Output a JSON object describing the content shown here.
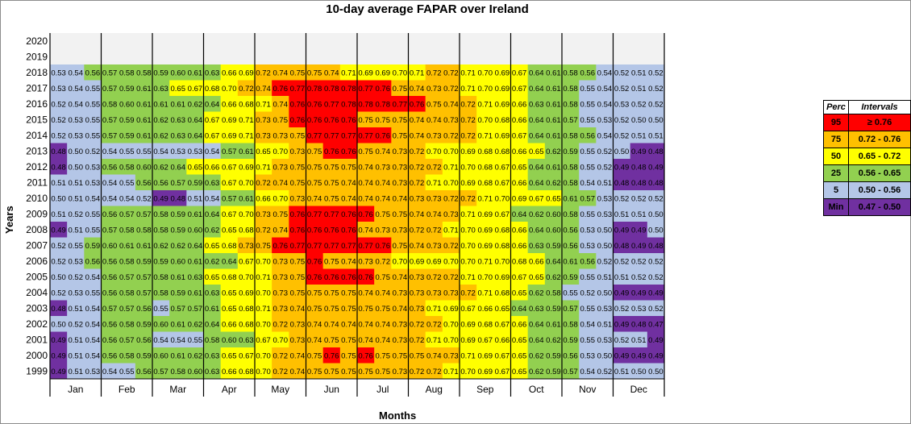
{
  "chart_data": {
    "type": "heatmap",
    "title": "10-day average FAPAR over Ireland",
    "xlabel": "Months",
    "ylabel": "Years",
    "months": [
      "Jan",
      "Feb",
      "Mar",
      "Apr",
      "May",
      "Jun",
      "Jul",
      "Aug",
      "Sep",
      "Oct",
      "Nov",
      "Dec"
    ],
    "years": [
      "2020",
      "2019",
      "2018",
      "2017",
      "2016",
      "2015",
      "2014",
      "2013",
      "2012",
      "2011",
      "2010",
      "2009",
      "2008",
      "2007",
      "2006",
      "2005",
      "2004",
      "2003",
      "2002",
      "2001",
      "2000",
      "1999"
    ],
    "rows": [
      [],
      [],
      [
        "0.53",
        "0.54",
        "0.56",
        "0.57",
        "0.58",
        "0.58",
        "0.59",
        "0.60",
        "0.61",
        "0.63",
        "0.66",
        "0.69",
        "0.72",
        "0.74",
        "0.75",
        "0.75",
        "0.74",
        "0.71",
        "0.69",
        "0.69",
        "0.70",
        "0.71",
        "0.72",
        "0.72",
        "0.71",
        "0.70",
        "0.69",
        "0.67",
        "0.64",
        "0.61",
        "0.58",
        "0.56",
        "0.54",
        "0.52",
        "0.51",
        "0.52"
      ],
      [
        "0.53",
        "0.54",
        "0.55",
        "0.57",
        "0.59",
        "0.61",
        "0.63",
        "0.65",
        "0.67",
        "0.68",
        "0.70",
        "0.72",
        "0.74",
        "0.76",
        "0.77",
        "0.78",
        "0.78",
        "0.78",
        "0.77",
        "0.76",
        "0.75",
        "0.74",
        "0.73",
        "0.72",
        "0.71",
        "0.70",
        "0.69",
        "0.67",
        "0.64",
        "0.61",
        "0.58",
        "0.55",
        "0.54",
        "0.52",
        "0.51",
        "0.52"
      ],
      [
        "0.52",
        "0.54",
        "0.55",
        "0.58",
        "0.60",
        "0.61",
        "0.61",
        "0.61",
        "0.62",
        "0.64",
        "0.66",
        "0.68",
        "0.71",
        "0.74",
        "0.76",
        "0.76",
        "0.77",
        "0.78",
        "0.78",
        "0.78",
        "0.77",
        "0.76",
        "0.75",
        "0.74",
        "0.72",
        "0.71",
        "0.69",
        "0.66",
        "0.63",
        "0.61",
        "0.58",
        "0.55",
        "0.54",
        "0.53",
        "0.52",
        "0.52"
      ],
      [
        "0.52",
        "0.53",
        "0.55",
        "0.57",
        "0.59",
        "0.61",
        "0.62",
        "0.63",
        "0.64",
        "0.67",
        "0.69",
        "0.71",
        "0.73",
        "0.75",
        "0.76",
        "0.76",
        "0.76",
        "0.76",
        "0.75",
        "0.75",
        "0.75",
        "0.74",
        "0.74",
        "0.73",
        "0.72",
        "0.70",
        "0.68",
        "0.66",
        "0.64",
        "0.61",
        "0.57",
        "0.55",
        "0.53",
        "0.52",
        "0.50",
        "0.50"
      ],
      [
        "0.52",
        "0.53",
        "0.55",
        "0.57",
        "0.59",
        "0.61",
        "0.62",
        "0.63",
        "0.64",
        "0.67",
        "0.69",
        "0.71",
        "0.73",
        "0.73",
        "0.75",
        "0.77",
        "0.77",
        "0.77",
        "0.77",
        "0.76",
        "0.75",
        "0.74",
        "0.73",
        "0.72",
        "0.72",
        "0.71",
        "0.69",
        "0.67",
        "0.64",
        "0.61",
        "0.58",
        "0.56",
        "0.54",
        "0.52",
        "0.51",
        "0.51"
      ],
      [
        "0.48",
        "0.50",
        "0.52",
        "0.54",
        "0.55",
        "0.55",
        "0.54",
        "0.53",
        "0.53",
        "0.54",
        "0.57",
        "0.61",
        "0.65",
        "0.70",
        "0.73",
        "0.75",
        "0.76",
        "0.76",
        "0.75",
        "0.74",
        "0.73",
        "0.72",
        "0.70",
        "0.70",
        "0.69",
        "0.68",
        "0.68",
        "0.66",
        "0.65",
        "0.62",
        "0.59",
        "0.55",
        "0.52",
        "0.50",
        "0.49",
        "0.48"
      ],
      [
        "0.48",
        "0.50",
        "0.53",
        "0.56",
        "0.58",
        "0.60",
        "0.62",
        "0.64",
        "0.65",
        "0.66",
        "0.67",
        "0.69",
        "0.71",
        "0.73",
        "0.75",
        "0.75",
        "0.75",
        "0.75",
        "0.74",
        "0.73",
        "0.73",
        "0.72",
        "0.72",
        "0.71",
        "0.70",
        "0.68",
        "0.67",
        "0.65",
        "0.64",
        "0.61",
        "0.58",
        "0.55",
        "0.52",
        "0.49",
        "0.48",
        "0.49"
      ],
      [
        "0.51",
        "0.51",
        "0.53",
        "0.54",
        "0.55",
        "0.56",
        "0.56",
        "0.57",
        "0.59",
        "0.63",
        "0.67",
        "0.70",
        "0.72",
        "0.74",
        "0.75",
        "0.75",
        "0.75",
        "0.74",
        "0.74",
        "0.74",
        "0.73",
        "0.72",
        "0.71",
        "0.70",
        "0.69",
        "0.68",
        "0.67",
        "0.66",
        "0.64",
        "0.62",
        "0.58",
        "0.54",
        "0.51",
        "0.48",
        "0.48",
        "0.48"
      ],
      [
        "0.50",
        "0.51",
        "0.54",
        "0.54",
        "0.54",
        "0.52",
        "0.49",
        "0.48",
        "0.51",
        "0.54",
        "0.57",
        "0.61",
        "0.66",
        "0.70",
        "0.73",
        "0.74",
        "0.75",
        "0.74",
        "0.74",
        "0.74",
        "0.74",
        "0.73",
        "0.73",
        "0.72",
        "0.72",
        "0.71",
        "0.70",
        "0.69",
        "0.67",
        "0.65",
        "0.61",
        "0.57",
        "0.53",
        "0.52",
        "0.52",
        "0.52"
      ],
      [
        "0.51",
        "0.52",
        "0.55",
        "0.56",
        "0.57",
        "0.57",
        "0.58",
        "0.59",
        "0.61",
        "0.64",
        "0.67",
        "0.70",
        "0.73",
        "0.75",
        "0.76",
        "0.77",
        "0.77",
        "0.76",
        "0.76",
        "0.75",
        "0.75",
        "0.74",
        "0.74",
        "0.73",
        "0.71",
        "0.69",
        "0.67",
        "0.64",
        "0.62",
        "0.60",
        "0.58",
        "0.55",
        "0.53",
        "0.51",
        "0.51",
        "0.50"
      ],
      [
        "0.49",
        "0.51",
        "0.55",
        "0.57",
        "0.58",
        "0.58",
        "0.58",
        "0.59",
        "0.60",
        "0.62",
        "0.65",
        "0.68",
        "0.72",
        "0.74",
        "0.76",
        "0.76",
        "0.76",
        "0.76",
        "0.74",
        "0.73",
        "0.73",
        "0.72",
        "0.72",
        "0.71",
        "0.70",
        "0.69",
        "0.68",
        "0.66",
        "0.64",
        "0.60",
        "0.56",
        "0.53",
        "0.50",
        "0.49",
        "0.49",
        "0.50"
      ],
      [
        "0.52",
        "0.55",
        "0.59",
        "0.60",
        "0.61",
        "0.61",
        "0.62",
        "0.62",
        "0.64",
        "0.65",
        "0.68",
        "0.73",
        "0.75",
        "0.76",
        "0.77",
        "0.77",
        "0.77",
        "0.77",
        "0.77",
        "0.76",
        "0.75",
        "0.74",
        "0.73",
        "0.72",
        "0.70",
        "0.69",
        "0.68",
        "0.66",
        "0.63",
        "0.59",
        "0.56",
        "0.53",
        "0.50",
        "0.48",
        "0.49",
        "0.48"
      ],
      [
        "0.52",
        "0.53",
        "0.56",
        "0.56",
        "0.58",
        "0.59",
        "0.59",
        "0.60",
        "0.61",
        "0.62",
        "0.64",
        "0.67",
        "0.70",
        "0.73",
        "0.75",
        "0.76",
        "0.75",
        "0.74",
        "0.73",
        "0.72",
        "0.70",
        "0.69",
        "0.69",
        "0.70",
        "0.70",
        "0.71",
        "0.70",
        "0.68",
        "0.66",
        "0.64",
        "0.61",
        "0.56",
        "0.52",
        "0.52",
        "0.52",
        "0.52"
      ],
      [
        "0.50",
        "0.52",
        "0.54",
        "0.56",
        "0.57",
        "0.57",
        "0.58",
        "0.61",
        "0.63",
        "0.65",
        "0.68",
        "0.70",
        "0.71",
        "0.73",
        "0.75",
        "0.76",
        "0.76",
        "0.76",
        "0.76",
        "0.75",
        "0.74",
        "0.73",
        "0.72",
        "0.72",
        "0.71",
        "0.70",
        "0.69",
        "0.67",
        "0.65",
        "0.62",
        "0.59",
        "0.55",
        "0.51",
        "0.51",
        "0.52",
        "0.52"
      ],
      [
        "0.52",
        "0.53",
        "0.55",
        "0.56",
        "0.58",
        "0.57",
        "0.58",
        "0.59",
        "0.61",
        "0.63",
        "0.65",
        "0.69",
        "0.70",
        "0.73",
        "0.75",
        "0.75",
        "0.75",
        "0.75",
        "0.74",
        "0.74",
        "0.73",
        "0.73",
        "0.73",
        "0.73",
        "0.72",
        "0.71",
        "0.68",
        "0.65",
        "0.62",
        "0.58",
        "0.55",
        "0.52",
        "0.50",
        "0.49",
        "0.49",
        "0.49"
      ],
      [
        "0.48",
        "0.51",
        "0.54",
        "0.57",
        "0.57",
        "0.56",
        "0.55",
        "0.57",
        "0.57",
        "0.61",
        "0.65",
        "0.68",
        "0.71",
        "0.73",
        "0.74",
        "0.75",
        "0.75",
        "0.75",
        "0.75",
        "0.75",
        "0.74",
        "0.73",
        "0.71",
        "0.69",
        "0.67",
        "0.66",
        "0.65",
        "0.64",
        "0.63",
        "0.59",
        "0.57",
        "0.55",
        "0.53",
        "0.52",
        "0.53",
        "0.52"
      ],
      [
        "0.50",
        "0.52",
        "0.54",
        "0.56",
        "0.58",
        "0.59",
        "0.60",
        "0.61",
        "0.62",
        "0.64",
        "0.66",
        "0.68",
        "0.70",
        "0.72",
        "0.73",
        "0.74",
        "0.74",
        "0.74",
        "0.74",
        "0.74",
        "0.73",
        "0.72",
        "0.72",
        "0.70",
        "0.69",
        "0.68",
        "0.67",
        "0.66",
        "0.64",
        "0.61",
        "0.58",
        "0.54",
        "0.51",
        "0.49",
        "0.48",
        "0.47"
      ],
      [
        "0.49",
        "0.51",
        "0.54",
        "0.56",
        "0.57",
        "0.56",
        "0.54",
        "0.54",
        "0.55",
        "0.58",
        "0.60",
        "0.63",
        "0.67",
        "0.70",
        "0.73",
        "0.74",
        "0.75",
        "0.75",
        "0.74",
        "0.74",
        "0.73",
        "0.72",
        "0.71",
        "0.70",
        "0.69",
        "0.67",
        "0.66",
        "0.65",
        "0.64",
        "0.62",
        "0.59",
        "0.55",
        "0.53",
        "0.52",
        "0.51",
        "0.49"
      ],
      [
        "0.49",
        "0.51",
        "0.54",
        "0.56",
        "0.58",
        "0.59",
        "0.60",
        "0.61",
        "0.62",
        "0.63",
        "0.65",
        "0.67",
        "0.70",
        "0.72",
        "0.74",
        "0.75",
        "0.76",
        "0.75",
        "0.76",
        "0.75",
        "0.75",
        "0.75",
        "0.74",
        "0.73",
        "0.71",
        "0.69",
        "0.67",
        "0.65",
        "0.62",
        "0.59",
        "0.56",
        "0.53",
        "0.50",
        "0.49",
        "0.49",
        "0.49"
      ],
      [
        "0.49",
        "0.51",
        "0.53",
        "0.54",
        "0.55",
        "0.56",
        "0.57",
        "0.58",
        "0.60",
        "0.63",
        "0.66",
        "0.68",
        "0.70",
        "0.72",
        "0.74",
        "0.75",
        "0.75",
        "0.75",
        "0.75",
        "0.75",
        "0.73",
        "0.72",
        "0.72",
        "0.71",
        "0.70",
        "0.69",
        "0.67",
        "0.65",
        "0.62",
        "0.59",
        "0.57",
        "0.54",
        "0.52",
        "0.51",
        "0.50",
        "0.50"
      ]
    ],
    "colors": {
      "p95": "#ff0000",
      "p75": "#ffc000",
      "p50": "#ffff00",
      "p25": "#92d050",
      "p5": "#b4c6e7",
      "min": "#7030a0",
      "missing": "#f2f2f2"
    },
    "legend": {
      "header": [
        "Perc",
        "Intervals"
      ],
      "rows": [
        {
          "perc": "95",
          "interval": "≥ 0.76",
          "color": "#ff0000"
        },
        {
          "perc": "75",
          "interval": "0.72  -  0.76",
          "color": "#ffc000"
        },
        {
          "perc": "50",
          "interval": "0.65  -  0.72",
          "color": "#ffff00"
        },
        {
          "perc": "25",
          "interval": "0.56  -  0.65",
          "color": "#92d050"
        },
        {
          "perc": "5",
          "interval": "0.50  -  0.56",
          "color": "#b4c6e7"
        },
        {
          "perc": "Min",
          "interval": "0.47  -  0.50",
          "color": "#7030a0"
        }
      ]
    }
  }
}
